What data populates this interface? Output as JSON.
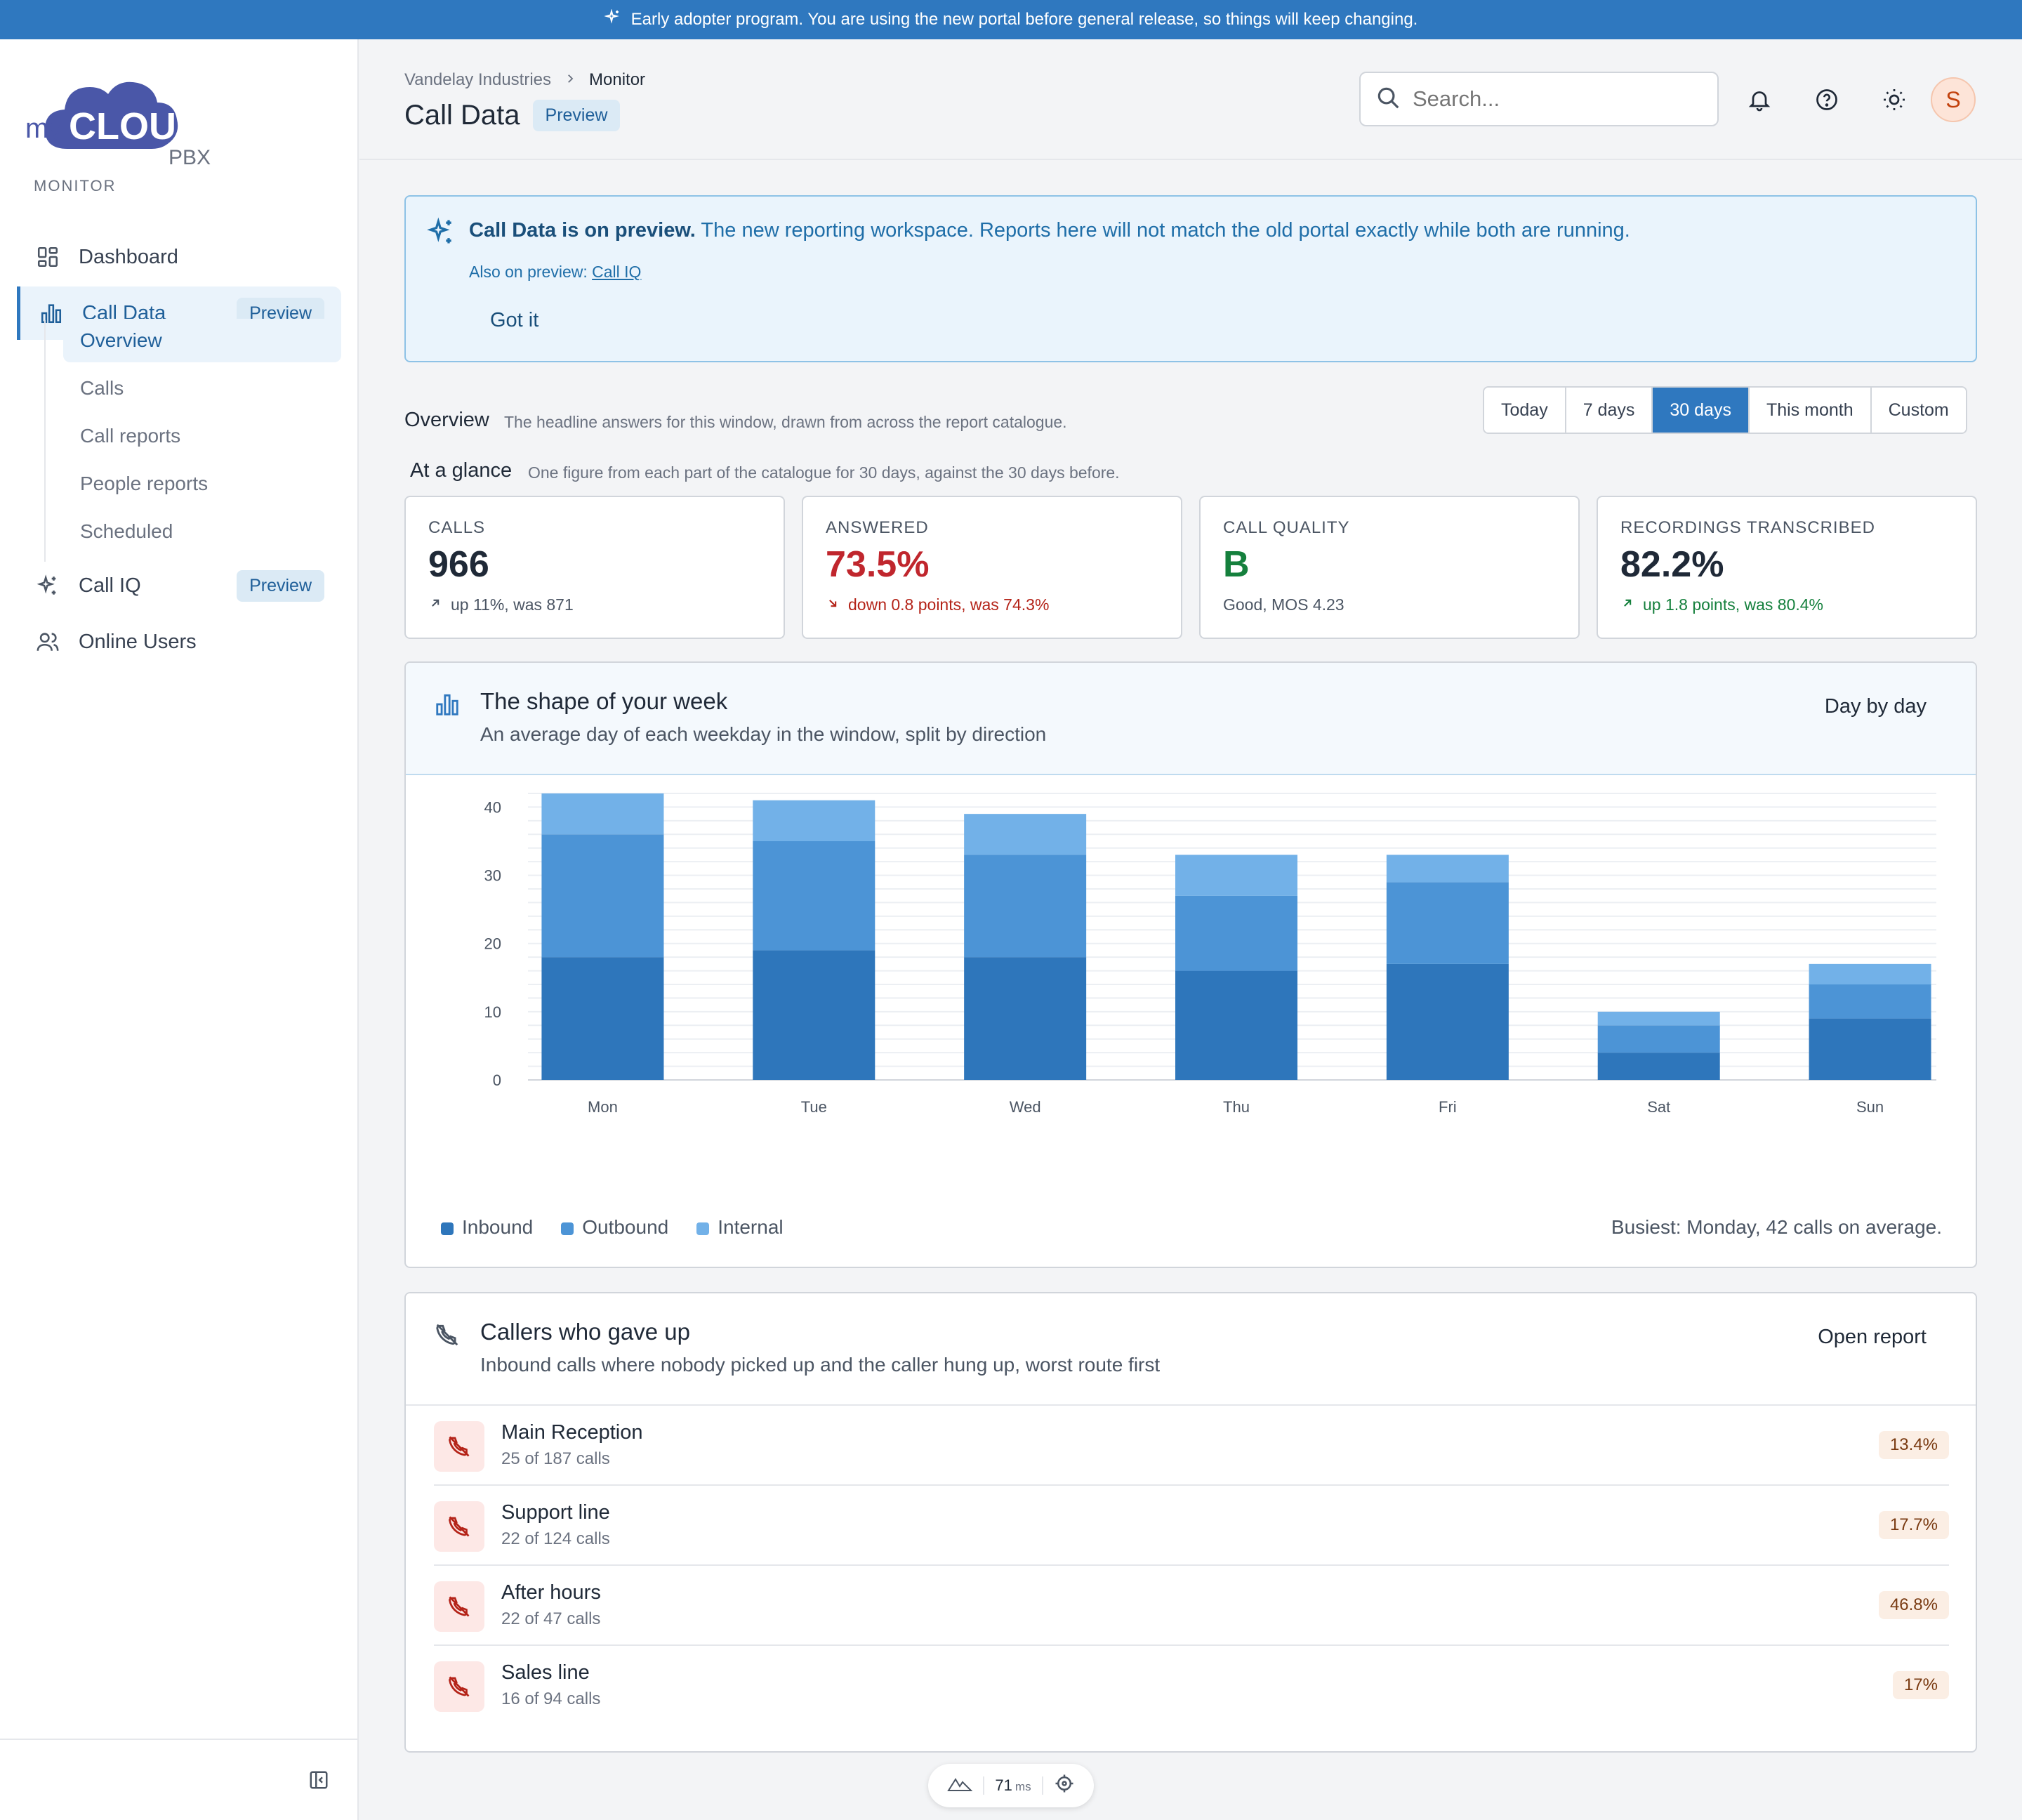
{
  "banner": {
    "text": "Early adopter program. You are using the new portal before general release, so things will keep changing."
  },
  "brand": {
    "my": "my",
    "cloud": "CLOUD",
    "pbx": "PBX",
    "color": "#4a57a8"
  },
  "sidebar": {
    "section": "MONITOR",
    "items": [
      {
        "label": "Dashboard",
        "icon": "grid-icon"
      },
      {
        "label": "Call Data",
        "icon": "bar-chart-icon",
        "badge": "Preview"
      },
      {
        "label": "Call IQ",
        "icon": "sparkle-icon",
        "badge": "Preview"
      },
      {
        "label": "Online Users",
        "icon": "users-icon"
      }
    ],
    "subitems": [
      "Overview",
      "Calls",
      "Call reports",
      "People reports",
      "Scheduled"
    ]
  },
  "header": {
    "breadcrumb": [
      "Vandelay Industries",
      "Monitor"
    ],
    "title": "Call Data",
    "title_badge": "Preview",
    "search_placeholder": "Search...",
    "avatar_initial": "S"
  },
  "notice": {
    "bold": "Call Data is on preview.",
    "text": "The new reporting workspace. Reports here will not match the old portal exactly while both are running.",
    "also_label": "Also on preview:",
    "also_link": "Call IQ",
    "dismiss": "Got it"
  },
  "overview": {
    "label": "Overview",
    "desc": "The headline answers for this window, drawn from across the report catalogue.",
    "ranges": [
      "Today",
      "7 days",
      "30 days",
      "This month",
      "Custom"
    ],
    "selected_range": "30 days"
  },
  "glance": {
    "label": "At a glance",
    "desc": "One figure from each part of the catalogue for 30 days, against the 30 days before.",
    "kpis": [
      {
        "label": "CALLS",
        "value": "966",
        "delta": "up 11%, was 871",
        "trend": "up",
        "tone": "neutral"
      },
      {
        "label": "ANSWERED",
        "value": "73.5%",
        "delta": "down 0.8 points, was 74.3%",
        "trend": "down",
        "tone": "bad"
      },
      {
        "label": "CALL QUALITY",
        "value": "B",
        "delta": "Good, MOS 4.23",
        "trend": "none",
        "tone": "good"
      },
      {
        "label": "RECORDINGS TRANSCRIBED",
        "value": "82.2%",
        "delta": "up 1.8 points, was 80.4%",
        "trend": "up",
        "tone": "good"
      }
    ]
  },
  "week_card": {
    "title": "The shape of your week",
    "subtitle": "An average day of each weekday in the window, split by direction",
    "action": "Day by day",
    "busiest": "Busiest: Monday, 42 calls on average."
  },
  "chart_data": {
    "type": "bar",
    "stacked": true,
    "categories": [
      "Mon",
      "Tue",
      "Wed",
      "Thu",
      "Fri",
      "Sat",
      "Sun"
    ],
    "series": [
      {
        "name": "Inbound",
        "values": [
          18,
          19,
          18,
          16,
          17,
          4,
          9
        ],
        "color": "#2e76bb"
      },
      {
        "name": "Outbound",
        "values": [
          18,
          16,
          15,
          11,
          12,
          4,
          5
        ],
        "color": "#4c94d6"
      },
      {
        "name": "Internal",
        "values": [
          6,
          6,
          6,
          6,
          4,
          2,
          3
        ],
        "color": "#72b1e8"
      }
    ],
    "yticks": [
      0,
      10,
      20,
      30,
      40
    ],
    "ylim": [
      0,
      42
    ],
    "grid": true,
    "legend": "bottom-left"
  },
  "abandon_card": {
    "title": "Callers who gave up",
    "subtitle": "Inbound calls where nobody picked up and the caller hung up, worst route first",
    "action": "Open report",
    "rows": [
      {
        "name": "Main Reception",
        "count": "25 of 187 calls",
        "pct": "13.4%"
      },
      {
        "name": "Support line",
        "count": "22 of 124 calls",
        "pct": "17.7%"
      },
      {
        "name": "After hours",
        "count": "22 of 47 calls",
        "pct": "46.8%"
      },
      {
        "name": "Sales line",
        "count": "16 of 94 calls",
        "pct": "17%"
      }
    ]
  },
  "perf": {
    "value": "71",
    "unit": "ms"
  }
}
